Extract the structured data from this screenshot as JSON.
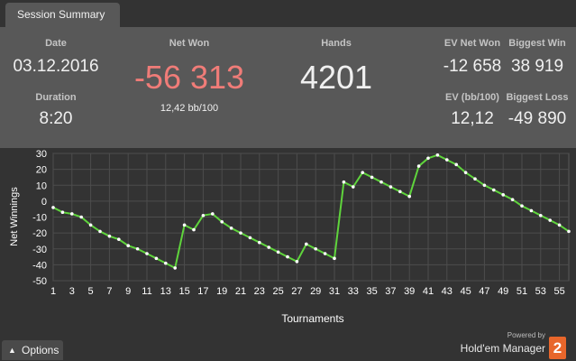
{
  "tab": {
    "label": "Session Summary"
  },
  "summary": {
    "date": {
      "label": "Date",
      "value": "03.12.2016"
    },
    "duration": {
      "label": "Duration",
      "value": "8:20"
    },
    "net_won": {
      "label": "Net Won",
      "value": "-56 313",
      "sub": "12,42 bb/100",
      "color": "#f07c78"
    },
    "hands": {
      "label": "Hands",
      "value": "4201"
    },
    "ev_net_won": {
      "label": "EV Net Won",
      "value": "-12 658"
    },
    "biggest_win": {
      "label": "Biggest Win",
      "value": "38 919"
    },
    "ev_bb100": {
      "label": "EV (bb/100)",
      "value": "12,12"
    },
    "biggest_loss": {
      "label": "Biggest Loss",
      "value": "-49 890"
    }
  },
  "chart_data": {
    "type": "line",
    "xlabel": "Tournaments",
    "ylabel": "Net Winnings",
    "ylim": [
      -50,
      30
    ],
    "yticks": [
      30,
      20,
      10,
      0,
      -10,
      -20,
      -30,
      -40,
      -50
    ],
    "xlim": [
      1,
      56
    ],
    "xticks": [
      1,
      3,
      5,
      7,
      9,
      11,
      13,
      15,
      17,
      19,
      21,
      23,
      25,
      27,
      29,
      31,
      33,
      35,
      37,
      39,
      41,
      43,
      45,
      47,
      49,
      51,
      53,
      55
    ],
    "grid": true,
    "line_color": "#5fd43c",
    "point_color": "#ffffff",
    "series": [
      {
        "x": [
          1,
          2,
          3,
          4,
          5,
          6,
          7,
          8,
          9,
          10,
          11,
          12,
          13,
          14,
          15,
          16,
          17,
          18,
          19,
          20,
          21,
          22,
          23,
          24,
          25,
          26,
          27,
          28,
          29,
          30,
          31,
          32,
          33,
          34,
          35,
          36,
          37,
          38,
          39,
          40,
          41,
          42,
          43,
          44,
          45,
          46,
          47,
          48,
          49,
          50,
          51,
          52,
          53,
          54,
          55,
          56
        ],
        "values": [
          -4,
          -7,
          -8,
          -10,
          -15,
          -19,
          -22,
          -24,
          -28,
          -30,
          -33,
          -36,
          -39,
          -42,
          -15,
          -18,
          -9,
          -8,
          -13,
          -17,
          -20,
          -23,
          -26,
          -29,
          -32,
          -35,
          -38,
          -27,
          -30,
          -33,
          -36,
          12,
          9,
          18,
          15,
          12,
          9,
          6,
          3,
          22,
          27,
          29,
          26,
          23,
          18,
          14,
          10,
          7,
          4,
          1,
          -3,
          -6,
          -9,
          -12,
          -15,
          -19
        ]
      }
    ]
  },
  "footer": {
    "options_label": "Options",
    "chevron_icon": "chevron-up-icon",
    "powered_by": "Powered by",
    "brand": "Hold'em Manager",
    "brand_mark": "2",
    "brand_color": "#e8662b"
  }
}
